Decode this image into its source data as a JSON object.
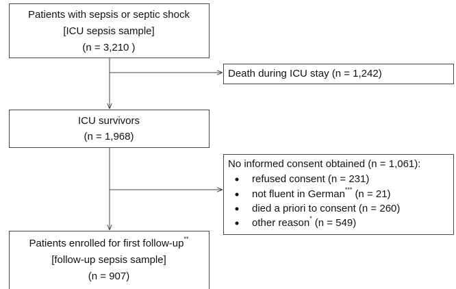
{
  "nodes": [
    {
      "lines": [
        "Patients with sepsis or septic shock",
        "[ICU sepsis sample]",
        "(n = 3,210 )"
      ]
    },
    {
      "lines": [
        "Death during ICU stay (n = 1,242)"
      ]
    },
    {
      "lines": [
        "ICU survivors",
        "(n = 1,968)"
      ]
    },
    {
      "title": "No informed consent obtained (n = 1,061):",
      "items": [
        {
          "text": "refused consent (n = 231)"
        },
        {
          "text": "not fluent in German",
          "sup": "***",
          "after": "(n = 21)"
        },
        {
          "text": "died a priori to consent (n = 260)"
        },
        {
          "text": "other reason",
          "sup": "*",
          "after": "(n = 549)"
        }
      ]
    },
    {
      "lines": [
        "Patients enrolled for first follow-up",
        "[follow-up sepsis sample]",
        "(n = 907)"
      ],
      "sup": "**"
    }
  ]
}
